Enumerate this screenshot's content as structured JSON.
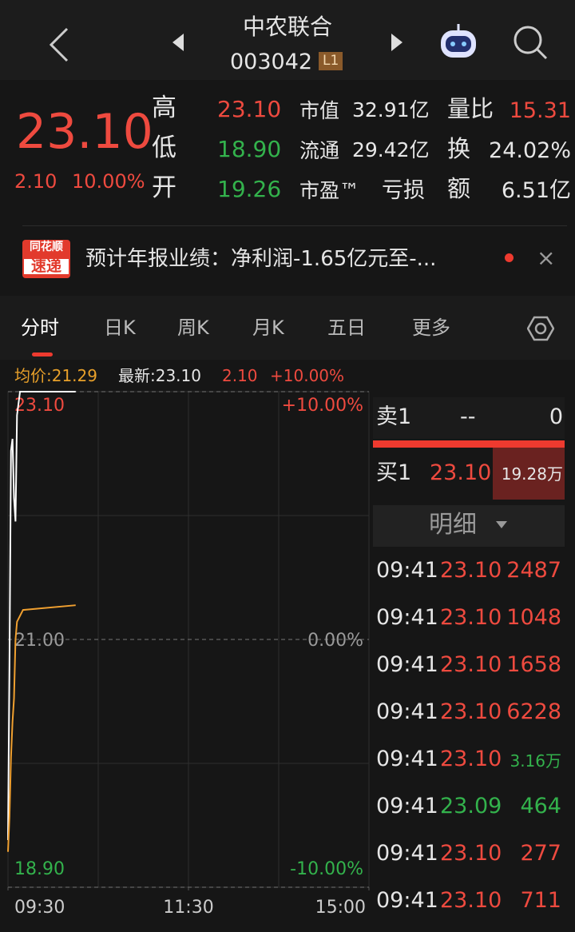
{
  "header": {
    "title": "中农联合",
    "code": "003042",
    "badge": "L1"
  },
  "quote": {
    "price": "23.10",
    "change": "2.10",
    "pct": "10.00%",
    "stats": [
      [
        "高",
        "23.10",
        "市值",
        "32.91亿",
        "量比",
        "15.31"
      ],
      [
        "低",
        "18.90",
        "流通",
        "29.42亿",
        "换",
        "24.02%"
      ],
      [
        "开",
        "19.26",
        "市盈™",
        "亏损",
        "额",
        "6.51亿"
      ]
    ]
  },
  "news": {
    "badge_top": "同花顺",
    "badge_bottom": "速递",
    "text": "预计年报业绩：净利润-1.65亿元至-..."
  },
  "tabs": [
    "分时",
    "日K",
    "周K",
    "月K",
    "五日",
    "更多"
  ],
  "info": {
    "avg": "均价:21.29",
    "latest": "最新:23.10",
    "change": "2.10",
    "pct": "+10.00%"
  },
  "intraday": {
    "ylim": [
      18.9,
      23.1
    ],
    "yticks": [
      {
        "value": 23.1,
        "label": "23.10"
      },
      {
        "value": 21,
        "label": "21.00"
      },
      {
        "value": 18.9,
        "label": "18.90"
      }
    ],
    "pct_ticks": [
      "+10.00%",
      "0.00%",
      "-10.00%"
    ],
    "xlim": [
      0,
      240
    ],
    "xticks": [
      {
        "value": 0,
        "label": "09:30"
      },
      {
        "value": 120,
        "label": "11:30"
      },
      {
        "value": 240,
        "label": "15:00"
      }
    ],
    "x": [
      0,
      1,
      2,
      3,
      4,
      5,
      6,
      8,
      10,
      45
    ],
    "series": [
      {
        "name": "price",
        "color": "#ffffff",
        "values": [
          19.3,
          20.8,
          22.6,
          22.7,
          22.2,
          22.0,
          22.9,
          23.1,
          23.1,
          23.1
        ]
      },
      {
        "name": "avg",
        "color": "#f0a030",
        "values": [
          19.2,
          19.5,
          20.0,
          20.3,
          20.5,
          21.0,
          21.15,
          21.2,
          21.25,
          21.29
        ]
      }
    ]
  },
  "orderbook": {
    "sell": [
      "卖1",
      "--",
      "0"
    ],
    "buy": [
      "买1",
      "23.10",
      "19.28万"
    ]
  },
  "detail": {
    "title": "明细",
    "rows": [
      [
        "09:41",
        "23.10",
        "2487"
      ],
      [
        "09:41",
        "23.10",
        "1048"
      ],
      [
        "09:41",
        "23.10",
        "1658"
      ],
      [
        "09:41",
        "23.10",
        "6228"
      ],
      [
        "09:41",
        "23.10",
        "3.16万"
      ],
      [
        "09:41",
        "23.09",
        "464"
      ],
      [
        "09:41",
        "23.10",
        "277"
      ],
      [
        "09:41",
        "23.10",
        "711"
      ]
    ]
  }
}
